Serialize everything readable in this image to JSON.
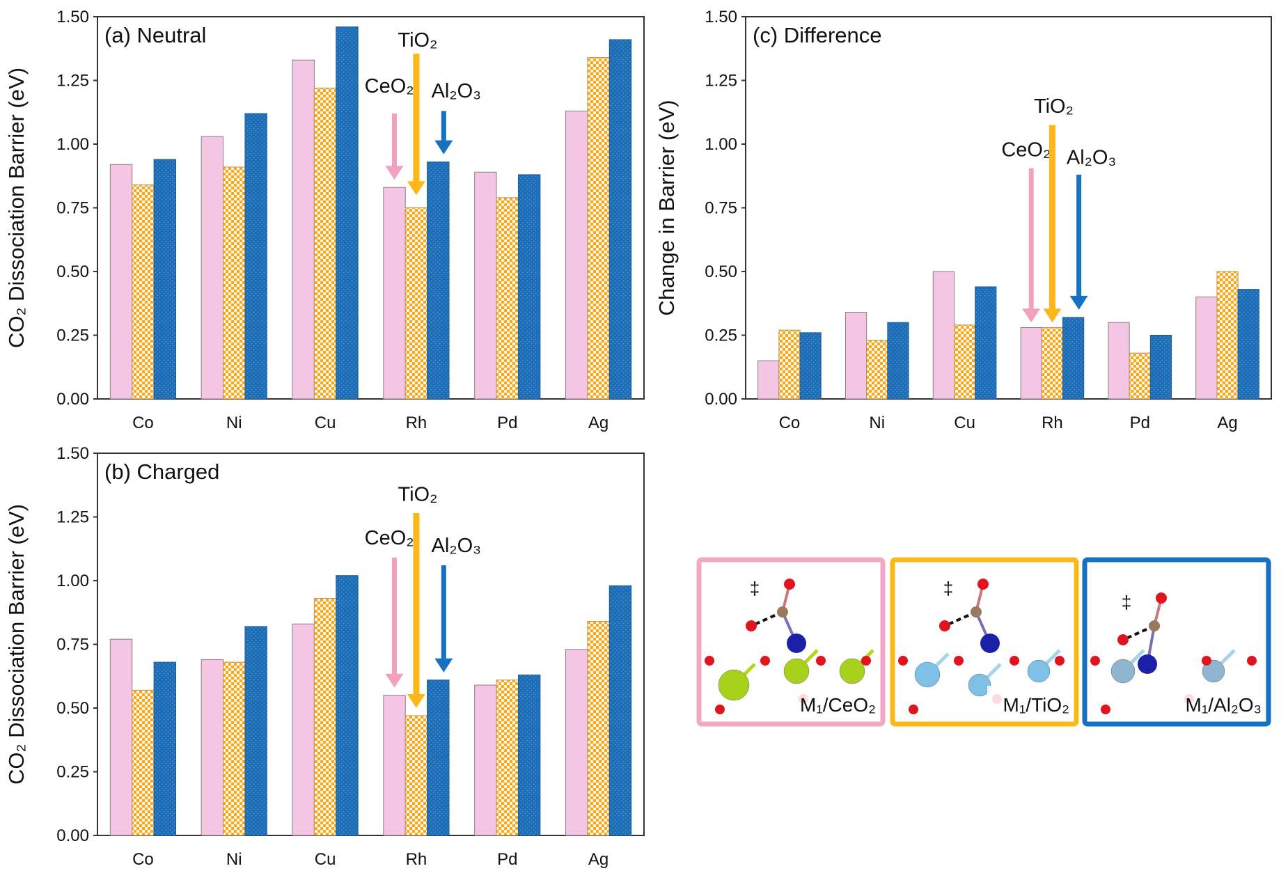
{
  "chart_data": [
    {
      "type": "bar",
      "title": "(a) Neutral",
      "ylabel": "CO₂ Dissociation Barrier (eV)",
      "xlabel": "",
      "ylim": [
        0,
        1.5
      ],
      "yticks": [
        "0.00",
        "0.25",
        "0.50",
        "0.75",
        "1.00",
        "1.25",
        "1.50"
      ],
      "categories": [
        "Co",
        "Ni",
        "Cu",
        "Rh",
        "Pd",
        "Ag"
      ],
      "grid": false,
      "series": [
        {
          "name": "CeO₂",
          "color": "#f5c6e3",
          "values": [
            0.92,
            1.03,
            1.33,
            0.83,
            0.89,
            1.13
          ]
        },
        {
          "name": "TiO₂",
          "color": "#f7a823",
          "values": [
            0.84,
            0.91,
            1.22,
            0.75,
            0.79,
            1.34
          ]
        },
        {
          "name": "Al₂O₃",
          "color": "#1c6db5",
          "values": [
            0.94,
            1.12,
            1.46,
            0.93,
            0.88,
            1.41
          ]
        }
      ]
    },
    {
      "type": "bar",
      "title": "(b) Charged",
      "ylabel": "CO₂ Dissociation Barrier (eV)",
      "xlabel": "",
      "ylim": [
        0,
        1.5
      ],
      "yticks": [
        "0.00",
        "0.25",
        "0.50",
        "0.75",
        "1.00",
        "1.25",
        "1.50"
      ],
      "categories": [
        "Co",
        "Ni",
        "Cu",
        "Rh",
        "Pd",
        "Ag"
      ],
      "grid": false,
      "series": [
        {
          "name": "CeO₂",
          "color": "#f5c6e3",
          "values": [
            0.77,
            0.69,
            0.83,
            0.55,
            0.59,
            0.73
          ]
        },
        {
          "name": "TiO₂",
          "color": "#f7a823",
          "values": [
            0.57,
            0.68,
            0.93,
            0.47,
            0.61,
            0.84
          ]
        },
        {
          "name": "Al₂O₃",
          "color": "#1c6db5",
          "values": [
            0.68,
            0.82,
            1.02,
            0.61,
            0.63,
            0.98
          ]
        }
      ]
    },
    {
      "type": "bar",
      "title": "(c) Difference",
      "ylabel": "Change in Barrier (eV)",
      "xlabel": "",
      "ylim": [
        0,
        1.5
      ],
      "yticks": [
        "0.00",
        "0.25",
        "0.50",
        "0.75",
        "1.00",
        "1.25",
        "1.50"
      ],
      "categories": [
        "Co",
        "Ni",
        "Cu",
        "Rh",
        "Pd",
        "Ag"
      ],
      "grid": false,
      "series": [
        {
          "name": "CeO₂",
          "color": "#f5c6e3",
          "values": [
            0.15,
            0.34,
            0.5,
            0.28,
            0.3,
            0.4
          ]
        },
        {
          "name": "TiO₂",
          "color": "#f7a823",
          "values": [
            0.27,
            0.23,
            0.29,
            0.28,
            0.18,
            0.5
          ]
        },
        {
          "name": "Al₂O₃",
          "color": "#1c6db5",
          "values": [
            0.26,
            0.3,
            0.44,
            0.32,
            0.25,
            0.43
          ]
        }
      ]
    }
  ],
  "structures": {
    "panels": [
      {
        "label": "M₁/CeO₂",
        "frame_color": "#f2a7c3",
        "dagger": "‡"
      },
      {
        "label": "M₁/TiO₂",
        "frame_color": "#fbb818",
        "dagger": "‡"
      },
      {
        "label": "M₁/Al₂O₃",
        "frame_color": "#1771c2",
        "dagger": "‡"
      }
    ]
  }
}
